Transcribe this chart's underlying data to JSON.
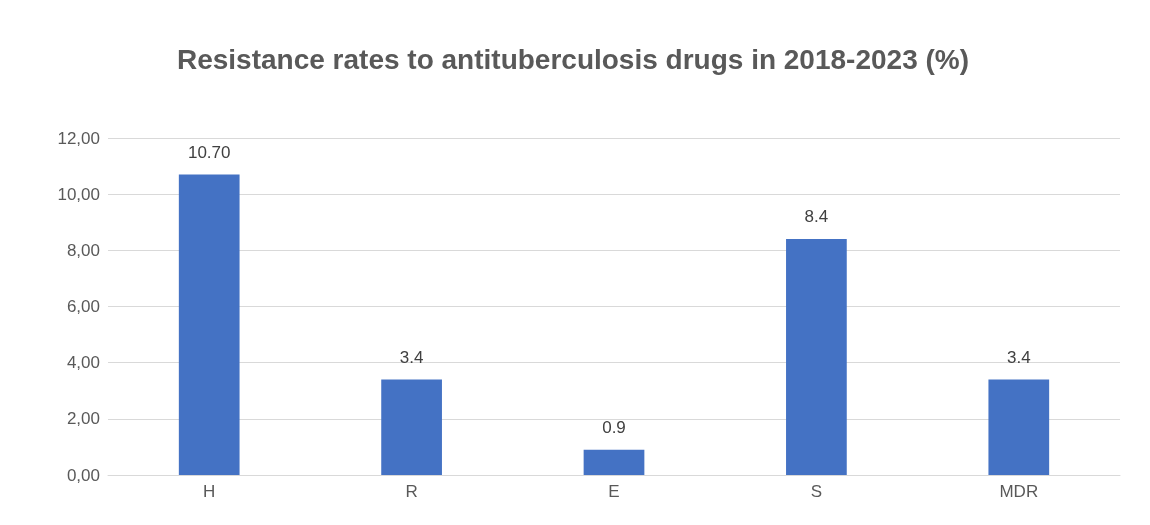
{
  "chart_data": {
    "type": "bar",
    "title": "Resistance rates to antituberculosis drugs in 2018-2023 (%)",
    "categories": [
      "H",
      "R",
      "E",
      "S",
      "MDR"
    ],
    "values": [
      10.7,
      3.4,
      0.9,
      8.4,
      3.4
    ],
    "value_labels": [
      "10.70",
      "3.4",
      "0.9",
      "8.4",
      "3.4"
    ],
    "color": "#4472c4",
    "ylim": [
      0,
      12
    ],
    "yticks": [
      {
        "value": 0,
        "label": "0,00"
      },
      {
        "value": 2,
        "label": "2,00"
      },
      {
        "value": 4,
        "label": "4,00"
      },
      {
        "value": 6,
        "label": "6,00"
      },
      {
        "value": 8,
        "label": "8,00"
      },
      {
        "value": 10,
        "label": "10,00"
      },
      {
        "value": 12,
        "label": "12,00"
      }
    ],
    "grid": "y"
  }
}
